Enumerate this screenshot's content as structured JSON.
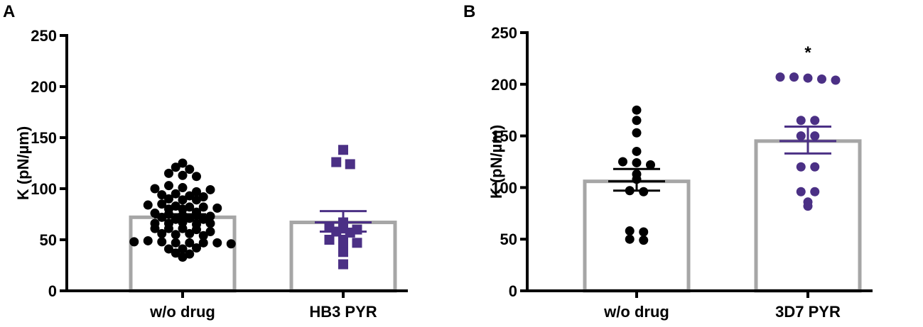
{
  "chart_data": [
    {
      "panel": "A",
      "type": "bar",
      "ylabel": "K (pN/µm)",
      "ylim": [
        0,
        250
      ],
      "yticks": [
        0,
        50,
        100,
        150,
        200,
        250
      ],
      "categories": [
        "w/o drug",
        "HB3 PYR"
      ],
      "bar_color": "#a6a6a6",
      "series": [
        {
          "category": "w/o drug",
          "mean": 72,
          "sem_low": 69,
          "sem_high": 75,
          "marker": "circle",
          "color": "#000000",
          "points": [
            125,
            121,
            115,
            113,
            119,
            112,
            100,
            103,
            101,
            97,
            99,
            94,
            95,
            93,
            90,
            92,
            89,
            89,
            84,
            85,
            83,
            82,
            82,
            80,
            81,
            80,
            76,
            77,
            75,
            74,
            74,
            73,
            72,
            70,
            71,
            70,
            66,
            66,
            67,
            65,
            66,
            61,
            61,
            61,
            60,
            58,
            56,
            55,
            56,
            54,
            48,
            49,
            48,
            47,
            47,
            47,
            47,
            46,
            41,
            41,
            42,
            37,
            36,
            33
          ]
        },
        {
          "category": "HB3 PYR",
          "mean": 67,
          "sem_low": 58,
          "sem_high": 78,
          "marker": "square",
          "color": "#4b3085",
          "points": [
            138,
            126,
            124,
            67,
            63,
            61,
            60,
            58,
            57,
            50,
            50,
            47,
            46,
            38,
            26
          ]
        }
      ],
      "annotations": []
    },
    {
      "panel": "B",
      "type": "bar",
      "ylabel": "K (pN/µm)",
      "ylim": [
        0,
        250
      ],
      "yticks": [
        0,
        50,
        100,
        150,
        200,
        250
      ],
      "categories": [
        "w/o drug",
        "3D7 PYR"
      ],
      "bar_color": "#a6a6a6",
      "series": [
        {
          "category": "w/o drug",
          "mean": 106,
          "sem_low": 97,
          "sem_high": 118,
          "marker": "circle",
          "color": "#000000",
          "points": [
            175,
            165,
            153,
            135,
            125,
            124,
            122,
            113,
            108,
            97,
            96,
            58,
            57,
            50,
            49
          ]
        },
        {
          "category": "3D7 PYR",
          "mean": 145,
          "sem_low": 133,
          "sem_high": 159,
          "marker": "circle",
          "color": "#4b3085",
          "points": [
            207,
            207,
            206,
            205,
            204,
            165,
            165,
            150,
            150,
            120,
            120,
            96,
            96,
            86,
            82
          ]
        }
      ],
      "annotations": [
        {
          "text": "*",
          "category": "3D7 PYR"
        }
      ]
    }
  ]
}
